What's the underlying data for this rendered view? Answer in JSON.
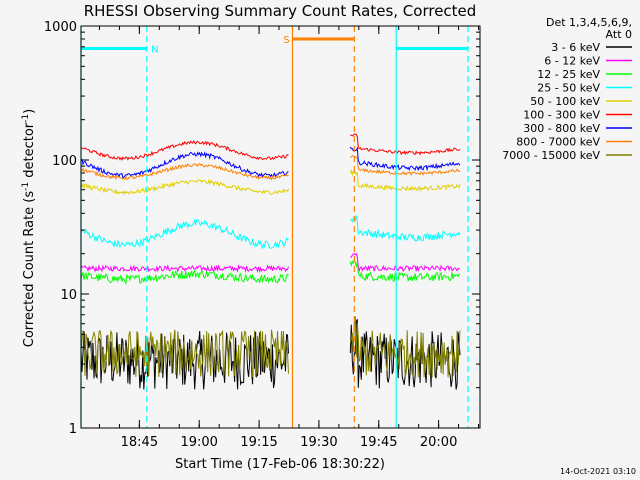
{
  "chart_data": {
    "type": "line",
    "title": "RHESSI Observing Summary Count Rates, Corrected",
    "xlabel": "Start Time (17-Feb-06 18:30:22)",
    "ylabel_main": "Corrected Count Rate (s",
    "ylabel_sup1": "-1",
    "ylabel_mid": " detector",
    "ylabel_sup2": "-1",
    "ylabel_end": ")",
    "y_scale": "log",
    "ylim": [
      1,
      1000
    ],
    "y_ticks": [
      {
        "value": 1,
        "label": "1"
      },
      {
        "value": 10,
        "label": "10"
      },
      {
        "value": 100,
        "label": "100"
      },
      {
        "value": 1000,
        "label": "1000"
      }
    ],
    "xlim_min": [
      0,
      100
    ],
    "x_ticks": [
      {
        "value": 14.63,
        "label": "18:45"
      },
      {
        "value": 29.63,
        "label": "19:00"
      },
      {
        "value": 44.63,
        "label": "19:15"
      },
      {
        "value": 59.63,
        "label": "19:30"
      },
      {
        "value": 74.63,
        "label": "19:45"
      },
      {
        "value": 89.63,
        "label": "20:00"
      }
    ],
    "legend_header_1": "Det 1,3,4,5,6,9,",
    "legend_header_2": "Att 0",
    "legend_position": "top-right",
    "series": [
      {
        "name": "3 - 6 keV",
        "color": "#000000",
        "level": 3.2,
        "noise": 0.55,
        "drift": 0.0
      },
      {
        "name": "6 - 12 keV",
        "color": "#ff00ff",
        "level": 15.5,
        "noise": 0.05,
        "drift": 0.0
      },
      {
        "name": "12 - 25 keV",
        "color": "#00ff00",
        "level": 13.5,
        "noise": 0.08,
        "drift": 0.05
      },
      {
        "name": "25 - 50 keV",
        "color": "#00ffff",
        "level": 28,
        "noise": 0.07,
        "drift": 0.2
      },
      {
        "name": "50 - 100 keV",
        "color": "#e0d000",
        "level": 63,
        "noise": 0.04,
        "drift": 0.1
      },
      {
        "name": "100 - 300 keV",
        "color": "#ff0000",
        "level": 118,
        "noise": 0.03,
        "drift": 0.15
      },
      {
        "name": "300 - 800 keV",
        "color": "#0000ff",
        "level": 92,
        "noise": 0.04,
        "drift": 0.2
      },
      {
        "name": "800 - 7000 keV",
        "color": "#ff8000",
        "level": 82,
        "noise": 0.03,
        "drift": 0.12
      },
      {
        "name": "7000 - 15000 keV",
        "color": "#808000",
        "level": 3.6,
        "noise": 0.45,
        "drift": 0.0
      }
    ],
    "data_segments": [
      {
        "start_min": 0,
        "end_min": 52
      },
      {
        "start_min": 67.5,
        "end_min": 95
      }
    ],
    "annotations": [
      {
        "label": "N",
        "type": "night",
        "color": "#00ffff",
        "start_min": 0,
        "end_min": 16.5,
        "value": 680
      },
      {
        "label": "",
        "type": "night",
        "color": "#00ffff",
        "start_min": 79,
        "end_min": 97,
        "value": 680
      },
      {
        "label": "S",
        "type": "saa",
        "color": "#ff8000",
        "start_min": 53,
        "end_min": 68.5,
        "value": 800
      }
    ],
    "footer_date": "14-Oct-2021 03:10"
  }
}
